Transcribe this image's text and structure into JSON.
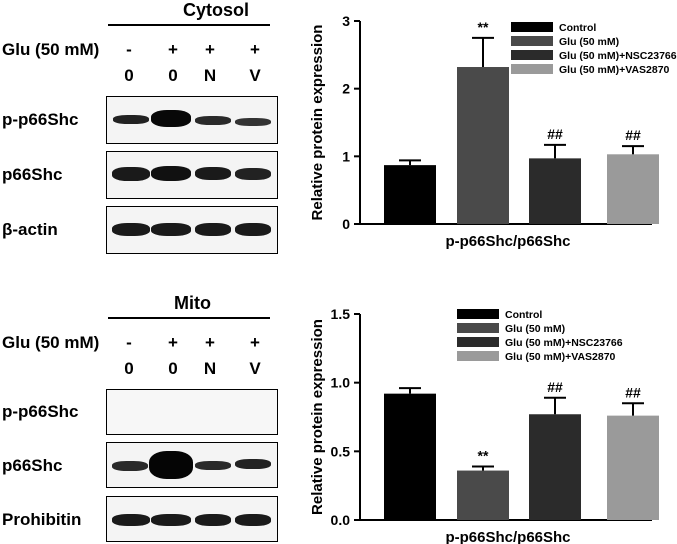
{
  "top": {
    "header": "Cytosol",
    "treatment_label": "Glu (50 mM)",
    "glu_signs": [
      "-",
      "+",
      "+",
      "+"
    ],
    "lanes": [
      "0",
      "0",
      "N",
      "V"
    ],
    "rows": [
      "p-p66Shc",
      "p66Shc",
      "β-actin"
    ]
  },
  "bottom": {
    "header": "Mito",
    "treatment_label": "Glu (50 mM)",
    "glu_signs": [
      "-",
      "+",
      "+",
      "+"
    ],
    "lanes": [
      "0",
      "0",
      "N",
      "V"
    ],
    "rows": [
      "p-p66Shc",
      "p66Shc",
      "Prohibitin"
    ]
  },
  "chart_data": [
    {
      "type": "bar",
      "ylabel": "Relative protein expression",
      "xlabel": "p-p66Shc/p66Shc",
      "ylim": [
        0,
        3
      ],
      "yticks": [
        "0",
        "1",
        "2",
        "3"
      ],
      "legend_position": "top-right",
      "series": [
        {
          "name": "Control",
          "value": 0.87,
          "error": 0.07,
          "annotation": "",
          "color": "#000000"
        },
        {
          "name": "Glu (50 mM)",
          "value": 2.32,
          "error": 0.43,
          "annotation": "**",
          "color": "#4a4a4a"
        },
        {
          "name": "Glu (50 mM)+NSC23766",
          "value": 0.97,
          "error": 0.2,
          "annotation": "##",
          "color": "#2b2b2b"
        },
        {
          "name": "Glu (50 mM)+VAS2870",
          "value": 1.03,
          "error": 0.12,
          "annotation": "##",
          "color": "#9a9a9a"
        }
      ]
    },
    {
      "type": "bar",
      "ylabel": "Relative protein expression",
      "xlabel": "p-p66Shc/p66Shc",
      "ylim": [
        0,
        1.5
      ],
      "yticks": [
        "0.0",
        "0.5",
        "1.0",
        "1.5"
      ],
      "legend_position": "top-right",
      "series": [
        {
          "name": "Control",
          "value": 0.92,
          "error": 0.04,
          "annotation": "",
          "color": "#000000"
        },
        {
          "name": "Glu (50 mM)",
          "value": 0.36,
          "error": 0.03,
          "annotation": "**",
          "color": "#4a4a4a"
        },
        {
          "name": "Glu (50 mM)+NSC23766",
          "value": 0.77,
          "error": 0.12,
          "annotation": "##",
          "color": "#2b2b2b"
        },
        {
          "name": "Glu (50 mM)+VAS2870",
          "value": 0.76,
          "error": 0.09,
          "annotation": "##",
          "color": "#9a9a9a"
        }
      ]
    }
  ]
}
